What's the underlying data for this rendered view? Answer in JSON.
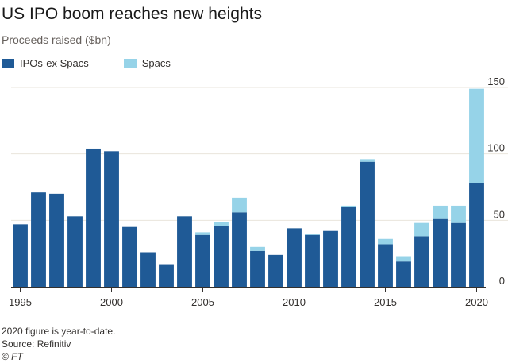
{
  "title": "US IPO boom reaches new heights",
  "subtitle": "Proceeds raised ($bn)",
  "footer": {
    "note": "2020 figure is year-to-date.",
    "source": "Source: Refinitiv",
    "copyright": "© FT"
  },
  "colors": {
    "ipos": "#1f5a96",
    "spacs": "#96d3e8",
    "grid": "#e9e4dc",
    "baseline": "#33302e"
  },
  "chart_data": {
    "type": "bar",
    "stacked": true,
    "title": "US IPO boom reaches new heights",
    "ylabel": "Proceeds raised ($bn)",
    "xlabel": "",
    "ylim": [
      0,
      150
    ],
    "y_ticks": [
      0,
      50,
      100,
      150
    ],
    "x_ticks": [
      1995,
      2000,
      2005,
      2010,
      2015,
      2020
    ],
    "legend_position": "top-left",
    "categories": [
      1995,
      1996,
      1997,
      1998,
      1999,
      2000,
      2001,
      2002,
      2003,
      2004,
      2005,
      2006,
      2007,
      2008,
      2009,
      2010,
      2011,
      2012,
      2013,
      2014,
      2015,
      2016,
      2017,
      2018,
      2019,
      2020
    ],
    "series": [
      {
        "name": "IPOs-ex Spacs",
        "values": [
          47,
          71,
          70,
          53,
          104,
          102,
          45,
          26,
          17,
          53,
          39,
          46,
          56,
          27,
          24,
          44,
          39,
          42,
          60,
          94,
          32,
          19,
          38,
          51,
          48,
          78
        ]
      },
      {
        "name": "Spacs",
        "values": [
          0,
          0,
          0,
          0,
          0,
          0,
          0,
          0,
          0,
          0,
          2,
          3,
          11,
          3,
          0,
          0,
          1,
          0,
          1,
          2,
          4,
          4,
          10,
          10,
          13,
          71
        ]
      }
    ]
  }
}
